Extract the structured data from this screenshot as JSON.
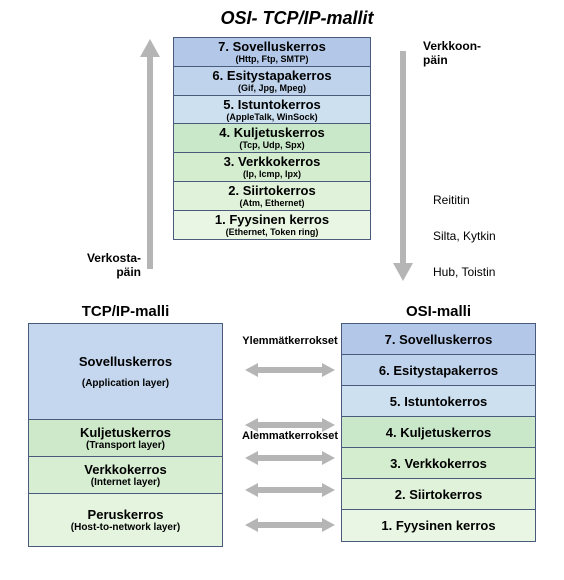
{
  "title": "OSI- TCP/IP-mallit",
  "labels": {
    "verkkoon": "Verkkoon-\npäin",
    "verkosta": "Verkosta-\npäin",
    "reititin": "Reititin",
    "silta": "Silta, Kytkin",
    "hub": "Hub, Toistin",
    "ylemmat": "Ylemmätkerrokset",
    "alemmat": "Alemmatkerrokset",
    "tcp_title": "TCP/IP-malli",
    "osi_title": "OSI-malli"
  },
  "arrow_color": "#b5b5b5",
  "border_color": "#4a5a7a",
  "osi_top": [
    {
      "title": "7. Sovelluskerros",
      "proto": "(Http, Ftp, SMTP)",
      "bg": "#b3c7e8"
    },
    {
      "title": "6. Esitystapakerros",
      "proto": "(Gif, Jpg, Mpeg)",
      "bg": "#bfd3ec"
    },
    {
      "title": "5. Istuntokerros",
      "proto": "(AppleTalk, WinSock)",
      "bg": "#cde0f0"
    },
    {
      "title": "4. Kuljetuskerros",
      "proto": "(Tcp, Udp, Spx)",
      "bg": "#c9e8c9"
    },
    {
      "title": "3. Verkkokerros",
      "proto": "(Ip, Icmp, Ipx)",
      "bg": "#d4edce"
    },
    {
      "title": "2. Siirtokerros",
      "proto": "(Atm, Ethernet)",
      "bg": "#e0f2da"
    },
    {
      "title": "1. Fyysinen kerros",
      "proto": "(Ethernet, Token ring)",
      "bg": "#e9f6e4"
    }
  ],
  "tcp_layers": [
    {
      "title": "Sovelluskerros",
      "sub": "(Application layer)",
      "bg": "#c4d7ee",
      "h": 96
    },
    {
      "title": "Kuljetuskerros",
      "sub": "(Transport layer)",
      "bg": "#cde9c9",
      "h": 37
    },
    {
      "title": "Verkkokerros",
      "sub": "(Internet layer)",
      "bg": "#d7eed3",
      "h": 37
    },
    {
      "title": "Peruskerros",
      "sub": "(Host-to-network layer)",
      "bg": "#e4f4df",
      "h": 52
    }
  ],
  "osi_bottom": [
    {
      "title": "7. Sovelluskerros",
      "bg": "#b3c7e8"
    },
    {
      "title": "6. Esitystapakerros",
      "bg": "#bfd3ec"
    },
    {
      "title": "5. Istuntokerros",
      "bg": "#cde0f0"
    },
    {
      "title": "4. Kuljetuskerros",
      "bg": "#c9e8c9"
    },
    {
      "title": "3. Verkkokerros",
      "bg": "#d4edce"
    },
    {
      "title": "2. Siirtokerros",
      "bg": "#e0f2da"
    },
    {
      "title": "1. Fyysinen kerros",
      "bg": "#e9f6e4"
    }
  ],
  "mid_arrows_top": [
    60,
    115,
    148,
    180,
    215
  ]
}
